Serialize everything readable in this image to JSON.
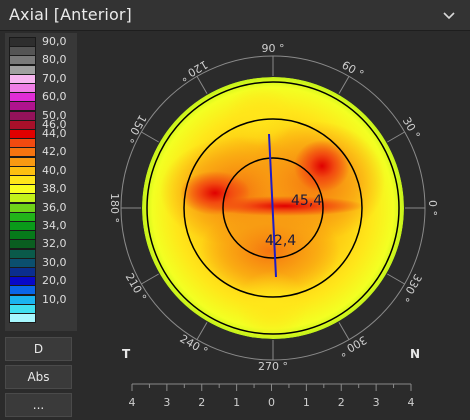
{
  "header": {
    "title": "Axial [Anterior]",
    "dropdown_icon": "chevron-down-icon"
  },
  "legend": {
    "items": [
      {
        "label": "90,0",
        "color": "#2e2e2e"
      },
      {
        "label": "",
        "color": "#555555"
      },
      {
        "label": "80,0",
        "color": "#7a7a7a"
      },
      {
        "label": "",
        "color": "#a0a0a0"
      },
      {
        "label": "70,0",
        "color": "#f7b5f0"
      },
      {
        "label": "",
        "color": "#f07ee6"
      },
      {
        "label": "60,0",
        "color": "#e02dd6"
      },
      {
        "label": "",
        "color": "#b0138e"
      },
      {
        "label": "50,0",
        "color": "#93125a"
      },
      {
        "label": "46,0",
        "color": "#a8102a"
      },
      {
        "label": "44,0",
        "color": "#e00000"
      },
      {
        "label": "",
        "color": "#f24a10"
      },
      {
        "label": "42,0",
        "color": "#f57410"
      },
      {
        "label": "",
        "color": "#f89a12"
      },
      {
        "label": "40,0",
        "color": "#fdc010"
      },
      {
        "label": "",
        "color": "#ffe61a"
      },
      {
        "label": "38,0",
        "color": "#f8ff20"
      },
      {
        "label": "",
        "color": "#c3f21a"
      },
      {
        "label": "36,0",
        "color": "#6fd21a"
      },
      {
        "label": "",
        "color": "#21b41a"
      },
      {
        "label": "34,0",
        "color": "#0a9a1a"
      },
      {
        "label": "",
        "color": "#067a1a"
      },
      {
        "label": "32,0",
        "color": "#0a5e20"
      },
      {
        "label": "",
        "color": "#0a5a4a"
      },
      {
        "label": "30,0",
        "color": "#0b4f6e"
      },
      {
        "label": "",
        "color": "#0b2e8e"
      },
      {
        "label": "20,0",
        "color": "#0808c8"
      },
      {
        "label": "",
        "color": "#0a66e8"
      },
      {
        "label": "10,0",
        "color": "#1ab4f0"
      },
      {
        "label": "",
        "color": "#40e0f0"
      },
      {
        "label": "",
        "color": "#a8f8ff"
      }
    ]
  },
  "buttons": {
    "d": "D",
    "abs": "Abs",
    "more": "..."
  },
  "map": {
    "angle_labels": [
      "90 °",
      "60 °",
      "30 °",
      "0 °",
      "330 °",
      "300 °",
      "270 °",
      "240 °",
      "210 °",
      "180 °",
      "150 °",
      "120 °"
    ],
    "side_left": "T",
    "side_right": "N",
    "value_upper": "45,4",
    "value_lower": "42,4",
    "scale_ticks": [
      "4",
      "3",
      "2",
      "1",
      "0",
      "1",
      "2",
      "3",
      "4"
    ]
  },
  "colors": {
    "background": "#2b2b2b",
    "axis_line": "#1c1cc8",
    "ring": "#000000"
  }
}
